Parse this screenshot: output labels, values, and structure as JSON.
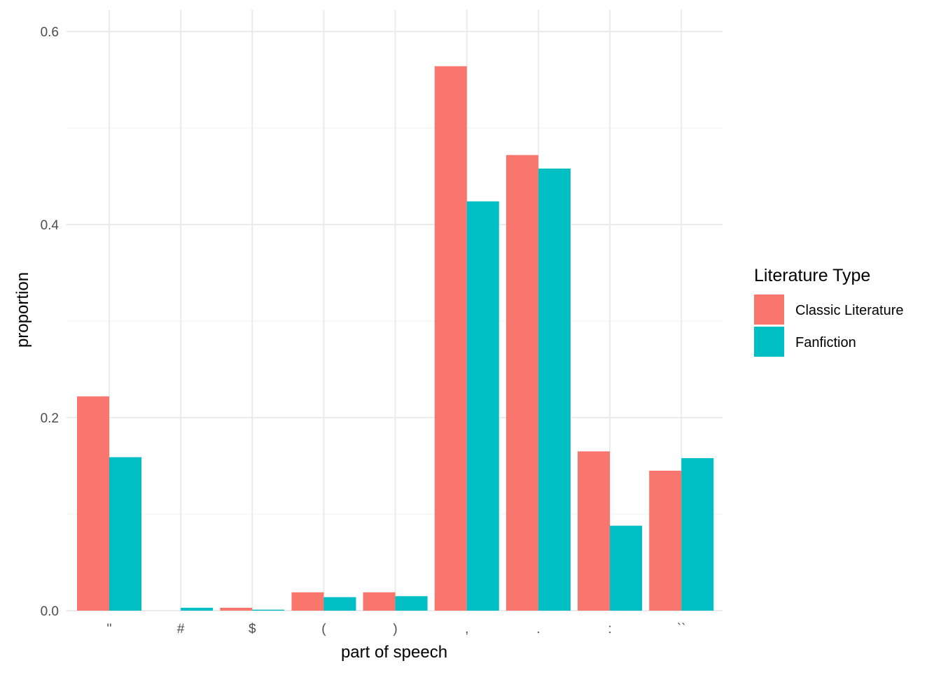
{
  "chart_data": {
    "type": "bar",
    "xlabel": "part of speech",
    "ylabel": "proportion",
    "categories": [
      "''",
      "#",
      "$",
      "(",
      ")",
      ",",
      ".",
      ":",
      "``"
    ],
    "series": [
      {
        "name": "Classic Literature",
        "color": "#F8766D",
        "values": [
          0.222,
          0.0,
          0.003,
          0.019,
          0.019,
          0.564,
          0.472,
          0.165,
          0.145
        ]
      },
      {
        "name": "Fanfiction",
        "color": "#00BFC4",
        "values": [
          0.159,
          0.003,
          0.001,
          0.014,
          0.015,
          0.424,
          0.458,
          0.088,
          0.158
        ]
      }
    ],
    "ylim": [
      0,
      0.6
    ],
    "yticks": [
      0.0,
      0.2,
      0.4,
      0.6
    ],
    "ytick_labels": [
      "0.0",
      "0.2",
      "0.4",
      "0.6"
    ],
    "grid": true,
    "legend": {
      "title": "Literature Type",
      "position": "right"
    }
  }
}
